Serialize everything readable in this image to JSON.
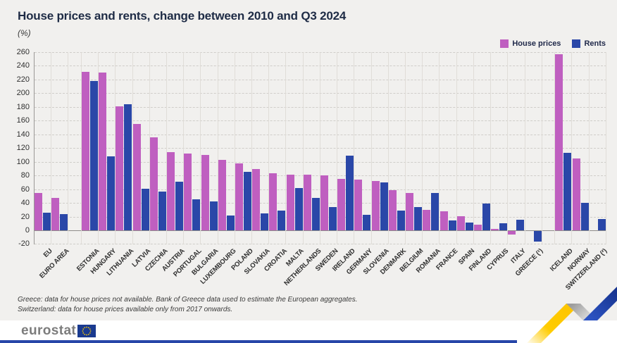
{
  "header": {
    "title": "House prices and rents, change between 2010 and Q3 2024",
    "unit": "(%)"
  },
  "footnotes": [
    "Greece: data for house prices not available. Bank of Greece data used to estimate the European aggregates.",
    "Switzerland: data for house prices available only from 2017 onwards."
  ],
  "branding": {
    "logo_text": "eurostat"
  },
  "colors": {
    "background": "#f1f0ee",
    "title_text": "#1e2b45",
    "bottom_bar": "#2746a8",
    "flag_blue": "#1a3a8f",
    "flag_stars": "#ffcc00"
  },
  "chart_data": {
    "type": "bar",
    "title": "House prices and rents, change between 2010 and Q3 2024",
    "unit": "(%)",
    "ylabel": "",
    "xlabel": "",
    "ylim": [
      -20,
      260
    ],
    "ytick_step": 20,
    "yticks": [
      260,
      240,
      220,
      200,
      180,
      160,
      140,
      120,
      100,
      80,
      60,
      40,
      20,
      0,
      -20
    ],
    "grid": "horizontal-dashed-with-vertical-category-separators",
    "legend_position": "top-right",
    "series": [
      {
        "name": "House prices",
        "key": "house_prices",
        "color": "#bf5fc0"
      },
      {
        "name": "Rents",
        "key": "rents",
        "color": "#2a47a8"
      }
    ],
    "categories": [
      {
        "label": "EU",
        "house_prices": 54,
        "rents": 26
      },
      {
        "label": "EURO AREA",
        "house_prices": 47,
        "rents": 24,
        "gap_after": true
      },
      {
        "label": "ESTONIA",
        "house_prices": 231,
        "rents": 218
      },
      {
        "label": "HUNGARY",
        "house_prices": 230,
        "rents": 108
      },
      {
        "label": "LITHUANIA",
        "house_prices": 181,
        "rents": 184
      },
      {
        "label": "LATVIA",
        "house_prices": 155,
        "rents": 61
      },
      {
        "label": "CZECHIA",
        "house_prices": 136,
        "rents": 57
      },
      {
        "label": "AUSTRIA",
        "house_prices": 114,
        "rents": 71
      },
      {
        "label": "PORTUGAL",
        "house_prices": 112,
        "rents": 45
      },
      {
        "label": "BULGARIA",
        "house_prices": 110,
        "rents": 42
      },
      {
        "label": "LUXEMBOURG",
        "house_prices": 103,
        "rents": 22
      },
      {
        "label": "POLAND",
        "house_prices": 98,
        "rents": 85
      },
      {
        "label": "SLOVAKIA",
        "house_prices": 89,
        "rents": 25
      },
      {
        "label": "CROATIA",
        "house_prices": 83,
        "rents": 29
      },
      {
        "label": "MALTA",
        "house_prices": 81,
        "rents": 62
      },
      {
        "label": "NETHERLANDS",
        "house_prices": 81,
        "rents": 47
      },
      {
        "label": "SWEDEN",
        "house_prices": 80,
        "rents": 34
      },
      {
        "label": "IRELAND",
        "house_prices": 75,
        "rents": 109
      },
      {
        "label": "GERMANY",
        "house_prices": 74,
        "rents": 23
      },
      {
        "label": "SLOVENIA",
        "house_prices": 72,
        "rents": 70
      },
      {
        "label": "DENMARK",
        "house_prices": 59,
        "rents": 29
      },
      {
        "label": "BELGIUM",
        "house_prices": 54,
        "rents": 34
      },
      {
        "label": "ROMANIA",
        "house_prices": 30,
        "rents": 54
      },
      {
        "label": "FRANCE",
        "house_prices": 28,
        "rents": 14
      },
      {
        "label": "SPAIN",
        "house_prices": 21,
        "rents": 11
      },
      {
        "label": "FINLAND",
        "house_prices": 8,
        "rents": 39
      },
      {
        "label": "CYPRUS",
        "house_prices": 2,
        "rents": 10
      },
      {
        "label": "ITALY",
        "house_prices": -5,
        "rents": 15
      },
      {
        "label": "GREECE (¹)",
        "house_prices": null,
        "rents": -15,
        "gap_after": true
      },
      {
        "label": "ICELAND",
        "house_prices": 257,
        "rents": 113
      },
      {
        "label": "NORWAY",
        "house_prices": 105,
        "rents": 40
      },
      {
        "label": "SWITZERLAND (²)",
        "house_prices": null,
        "rents": 16
      }
    ]
  }
}
